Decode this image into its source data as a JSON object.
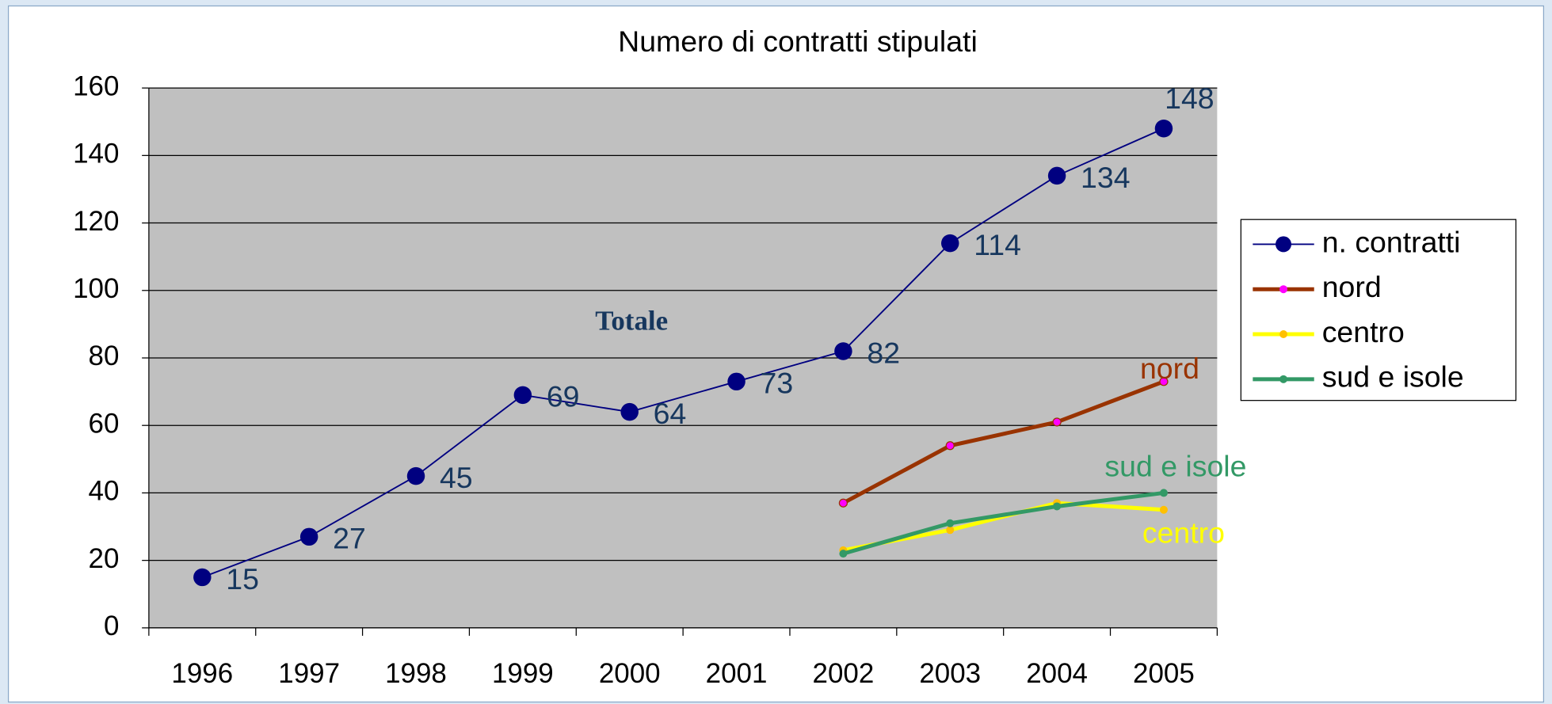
{
  "chart_data": {
    "type": "line",
    "title": "Numero di contratti stipulati",
    "categories": [
      "1996",
      "1997",
      "1998",
      "1999",
      "2000",
      "2001",
      "2002",
      "2003",
      "2004",
      "2005"
    ],
    "series": [
      {
        "name": "n. contratti",
        "color": "#000080",
        "marker_color": "#000080",
        "values": [
          15,
          27,
          45,
          69,
          64,
          73,
          82,
          114,
          134,
          148
        ]
      },
      {
        "name": "nord",
        "color": "#993300",
        "marker_color": "#ff00ff",
        "values": [
          null,
          null,
          null,
          null,
          null,
          null,
          37,
          54,
          61,
          73
        ]
      },
      {
        "name": "centro",
        "color": "#ffff00",
        "marker_color": "#ffc000",
        "values": [
          null,
          null,
          null,
          null,
          null,
          null,
          23,
          29,
          37,
          35
        ]
      },
      {
        "name": "sud e isole",
        "color": "#339966",
        "marker_color": "#339966",
        "values": [
          null,
          null,
          null,
          null,
          null,
          null,
          22,
          31,
          36,
          40
        ]
      }
    ],
    "annotations": [
      "Totale",
      "nord",
      "sud e isole",
      "centro"
    ],
    "ylim": [
      0,
      160
    ],
    "yticks": [
      0,
      20,
      40,
      60,
      80,
      100,
      120,
      140,
      160
    ],
    "grid": true,
    "legend": "right"
  }
}
